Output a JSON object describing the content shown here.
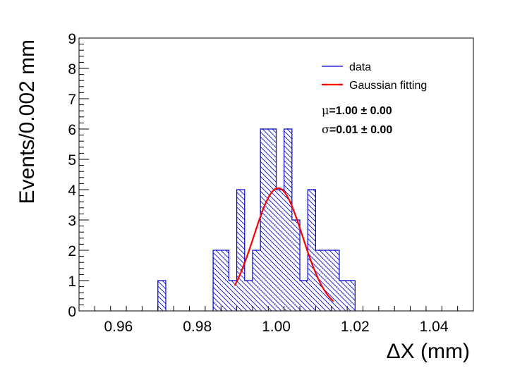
{
  "chart_data": {
    "type": "bar",
    "xlabel": "ΔX (mm)",
    "ylabel": "Events/0.002 mm",
    "xlim": [
      0.95,
      1.05
    ],
    "ylim": [
      0,
      9
    ],
    "bin_width": 0.002,
    "x_ticks": [
      "0.96",
      "0.98",
      "1.00",
      "1.02",
      "1.04"
    ],
    "x_tick_values": [
      0.96,
      0.98,
      1.0,
      1.02,
      1.04
    ],
    "y_ticks": [
      "0",
      "1",
      "2",
      "3",
      "4",
      "5",
      "6",
      "7",
      "8",
      "9"
    ],
    "bins": [
      {
        "x": 0.97,
        "value": 1
      },
      {
        "x": 0.984,
        "value": 2
      },
      {
        "x": 0.986,
        "value": 2
      },
      {
        "x": 0.988,
        "value": 1
      },
      {
        "x": 0.99,
        "value": 4
      },
      {
        "x": 0.992,
        "value": 1
      },
      {
        "x": 0.994,
        "value": 2
      },
      {
        "x": 0.996,
        "value": 6
      },
      {
        "x": 0.998,
        "value": 6
      },
      {
        "x": 1.0,
        "value": 4
      },
      {
        "x": 1.002,
        "value": 6
      },
      {
        "x": 1.004,
        "value": 3
      },
      {
        "x": 1.006,
        "value": 1
      },
      {
        "x": 1.008,
        "value": 4
      },
      {
        "x": 1.01,
        "value": 2
      },
      {
        "x": 1.012,
        "value": 2
      },
      {
        "x": 1.014,
        "value": 2
      },
      {
        "x": 1.016,
        "value": 1
      },
      {
        "x": 1.018,
        "value": 1
      }
    ],
    "fit": {
      "type": "gaussian",
      "amplitude": 4.05,
      "mean": 1.0005,
      "sigma": 0.0062,
      "range": [
        0.9895,
        1.0145
      ],
      "color": "#ff0000"
    },
    "series": [
      {
        "name": "data",
        "color": "#0000cc"
      },
      {
        "name": "Gaussian fitting",
        "color": "#ff0000"
      }
    ],
    "legend_position": "top-right",
    "stats": {
      "mu_symbol": "μ",
      "mu_text": "=1.00 ± 0.00",
      "sigma_symbol": "σ",
      "sigma_text": "=0.01 ± 0.00"
    }
  }
}
